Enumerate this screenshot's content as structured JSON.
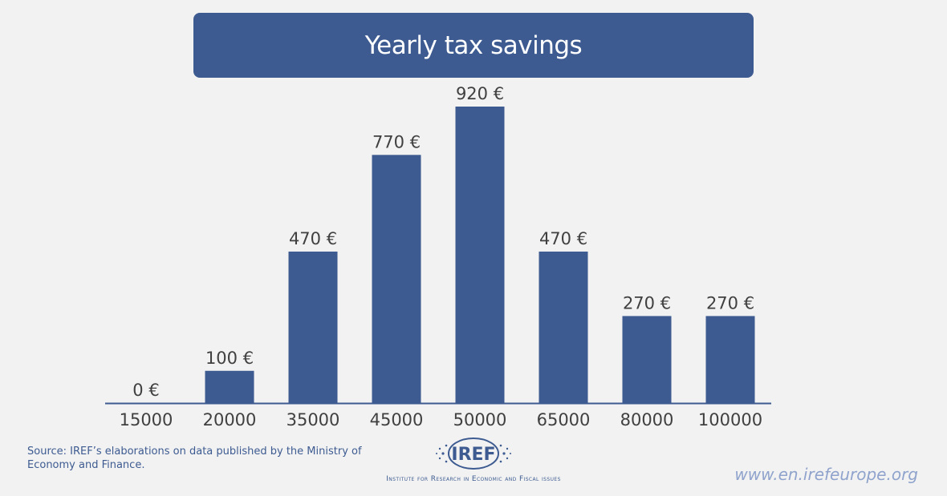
{
  "chart_data": {
    "type": "bar",
    "title": "Yearly tax savings",
    "categories": [
      "15000",
      "20000",
      "35000",
      "45000",
      "50000",
      "65000",
      "80000",
      "100000"
    ],
    "values": [
      0,
      100,
      470,
      770,
      920,
      470,
      270,
      270
    ],
    "data_labels": [
      "0 €",
      "100 €",
      "470 €",
      "770 €",
      "920 €",
      "470 €",
      "270 €",
      "270 €"
    ],
    "xlabel": "",
    "ylabel": "",
    "ylim": [
      0,
      920
    ],
    "grid": false,
    "legend": "none"
  },
  "colors": {
    "bar": "#3d5b91",
    "axis": "#3d5b91",
    "label": "#404040",
    "background": "#f2f2f2"
  },
  "footer": {
    "source": "Source: IREF’s elaborations on data published by the Ministry of Economy and Finance.",
    "logo_text": "IREF",
    "institute": "Institute for Research in Economic and Fiscal issues",
    "website": "www.en.irefeurope.org"
  }
}
